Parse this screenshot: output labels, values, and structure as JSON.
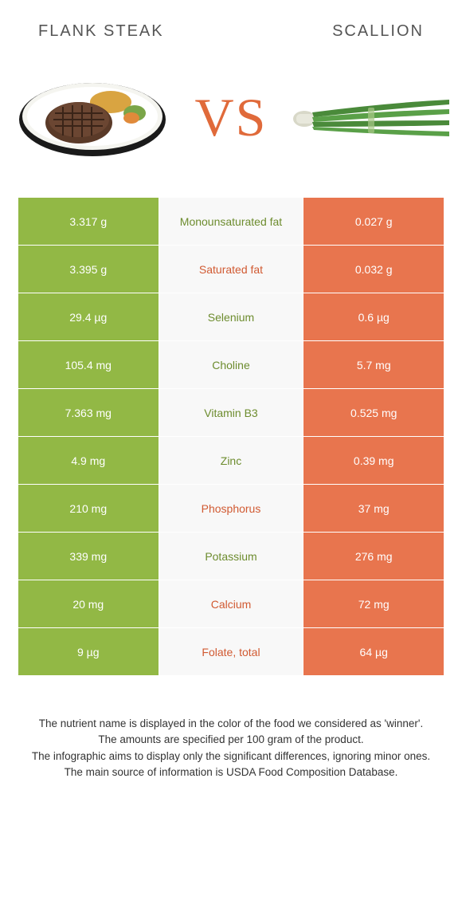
{
  "header": {
    "left_title": "Flank Steak",
    "right_title": "Scallion",
    "vs_text": "VS"
  },
  "colors": {
    "left_bg": "#92b845",
    "right_bg": "#e8754e",
    "mid_bg": "#f8f8f8",
    "mid_left_text": "#6d8c2e",
    "mid_right_text": "#d15a32",
    "cell_text": "#ffffff",
    "vs_color": "#e06a3a"
  },
  "rows": [
    {
      "left": "3.317 g",
      "mid": "Monounsaturated fat",
      "right": "0.027 g",
      "winner": "left"
    },
    {
      "left": "3.395 g",
      "mid": "Saturated fat",
      "right": "0.032 g",
      "winner": "right"
    },
    {
      "left": "29.4 µg",
      "mid": "Selenium",
      "right": "0.6 µg",
      "winner": "left"
    },
    {
      "left": "105.4 mg",
      "mid": "Choline",
      "right": "5.7 mg",
      "winner": "left"
    },
    {
      "left": "7.363 mg",
      "mid": "Vitamin B3",
      "right": "0.525 mg",
      "winner": "left"
    },
    {
      "left": "4.9 mg",
      "mid": "Zinc",
      "right": "0.39 mg",
      "winner": "left"
    },
    {
      "left": "210 mg",
      "mid": "Phosphorus",
      "right": "37 mg",
      "winner": "right"
    },
    {
      "left": "339 mg",
      "mid": "Potassium",
      "right": "276 mg",
      "winner": "left"
    },
    {
      "left": "20 mg",
      "mid": "Calcium",
      "right": "72 mg",
      "winner": "right"
    },
    {
      "left": "9 µg",
      "mid": "Folate, total",
      "right": "64 µg",
      "winner": "right"
    }
  ],
  "footer": {
    "line1": "The nutrient name is displayed in the color of the food we considered as 'winner'.",
    "line2": "The amounts are specified per 100 gram of the product.",
    "line3": "The infographic aims to display only the significant differences, ignoring minor ones.",
    "line4": "The main source of information is USDA Food Composition Database."
  }
}
